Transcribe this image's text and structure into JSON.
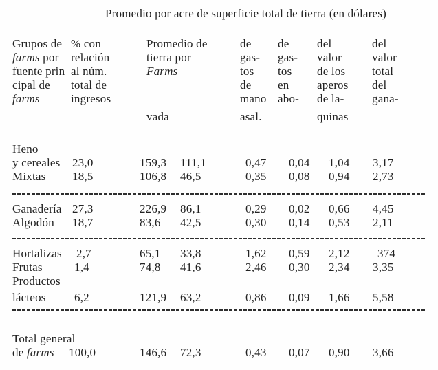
{
  "title": "Promedio por acre de superficie total de tierra (en dólares)",
  "header": {
    "groups": {
      "line1": "Grupos de",
      "line2_italic": "farms",
      "line2_rest": " por",
      "line3": "fuente prin",
      "line4": "cipal de",
      "line5_italic": "farms"
    },
    "pct": {
      "line1": "% con",
      "line2": "relación",
      "line3": "al núm.",
      "line4": "total de",
      "line5": "ingresos"
    },
    "promedio": {
      "line1": "Promedio de",
      "line2": "tierra por",
      "line3_italic": "Farms",
      "line6": "vada"
    },
    "gastos_mano": {
      "line1": "de",
      "line2": "gas-",
      "line3": "tos",
      "line4": "de",
      "line5": "mano",
      "line6": "asal."
    },
    "gastos_abono": {
      "line1": "de",
      "line2": "gas-",
      "line3": "tos",
      "line4": "en",
      "line5": "abo-"
    },
    "valor_aperos": {
      "line1": "del",
      "line2": "valor",
      "line3": "de los",
      "line4": "aperos",
      "line5": "de la-",
      "line6": "quinas"
    },
    "valor_ganado": {
      "line1": "del",
      "line2": "valor",
      "line3": "total",
      "line4": "del",
      "line5": "gana-"
    }
  },
  "rows": {
    "heno_line1": "Heno",
    "heno": {
      "label": "y cereales",
      "pct": "23,0",
      "tierra1": "159,3",
      "tierra2": "111,1",
      "mano": "0,47",
      "abono": "0,04",
      "aperos": "1,04",
      "ganado": "3,17"
    },
    "mixtas": {
      "label": "Mixtas",
      "pct": "18,5",
      "tierra1": "106,8",
      "tierra2": "46,5",
      "mano": "0,35",
      "abono": "0,08",
      "aperos": "0,94",
      "ganado": "2,73"
    },
    "ganaderia": {
      "label": "Ganadería",
      "pct": "27,3",
      "tierra1": "226,9",
      "tierra2": "86,1",
      "mano": "0,29",
      "abono": "0,02",
      "aperos": "0,66",
      "ganado": "4,45"
    },
    "algodon": {
      "label": "Algodón",
      "pct": "18,7",
      "tierra1": "83,6",
      "tierra2": "42,5",
      "mano": "0,30",
      "abono": "0,14",
      "aperos": "0,53",
      "ganado": "2,11"
    },
    "hortalizas": {
      "label": "Hortalizas",
      "pct": "2,7",
      "tierra1": "65,1",
      "tierra2": "33,8",
      "mano": "1,62",
      "abono": "0,59",
      "aperos": "2,12",
      "ganado": "374"
    },
    "frutas": {
      "label": "Frutas",
      "pct": "1,4",
      "tierra1": "74,8",
      "tierra2": "41,6",
      "mano": "2,46",
      "abono": "0,30",
      "aperos": "2,34",
      "ganado": "3,35"
    },
    "productos_line1": "Productos",
    "lacteos": {
      "label": "lácteos",
      "pct": "6,2",
      "tierra1": "121,9",
      "tierra2": "63,2",
      "mano": "0,86",
      "abono": "0,09",
      "aperos": "1,66",
      "ganado": "5,58"
    },
    "total_line1": "Total general",
    "total": {
      "label_prefix": "de ",
      "label_italic": "farms",
      "pct": "100,0",
      "tierra1": "146,6",
      "tierra2": "72,3",
      "mano": "0,43",
      "abono": "0,07",
      "aperos": "0,90",
      "ganado": "3,66"
    }
  }
}
